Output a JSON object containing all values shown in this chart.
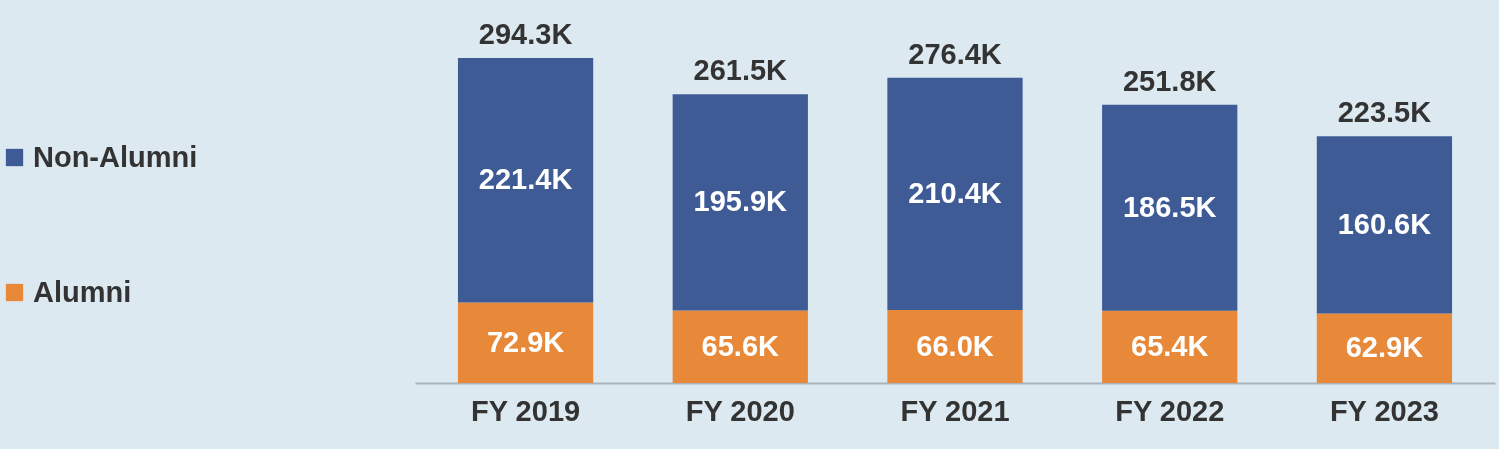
{
  "chart_data": {
    "type": "bar",
    "stacked": true,
    "legend": "left",
    "categories": [
      "FY 2019",
      "FY 2020",
      "FY 2021",
      "FY 2022",
      "FY 2023"
    ],
    "series": [
      {
        "name": "Alumni",
        "color": "#e8893a",
        "values": [
          72.9,
          65.6,
          66.0,
          65.4,
          62.9
        ],
        "value_labels": [
          "72.9K",
          "65.6K",
          "66.0K",
          "65.4K",
          "62.9K"
        ]
      },
      {
        "name": "Non-Alumni",
        "color": "#3f5b96",
        "values": [
          221.4,
          195.9,
          210.4,
          186.5,
          160.6
        ],
        "value_labels": [
          "221.4K",
          "195.9K",
          "210.4K",
          "186.5K",
          "160.6K"
        ]
      }
    ],
    "totals": [
      "294.3K",
      "261.5K",
      "276.4K",
      "251.8K",
      "223.5K"
    ]
  }
}
